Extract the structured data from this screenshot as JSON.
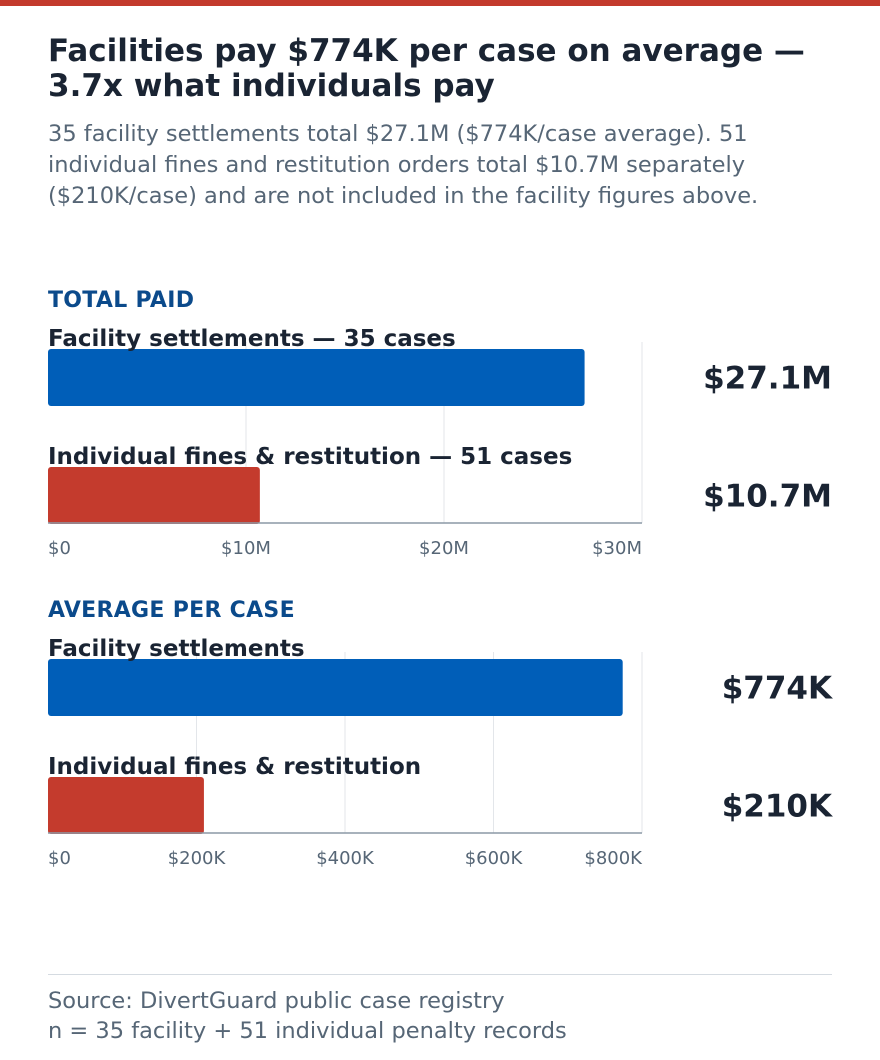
{
  "colors": {
    "accent_top": "#c33a2c",
    "facility": "#005eb8",
    "individual": "#c43b2d",
    "section_label": "#0b4a8b",
    "text_dark": "#1a2433",
    "text_muted": "#566676",
    "grid": "#e3e6ea",
    "axis": "#8c99a6"
  },
  "header": {
    "title": "Facilities pay $774K per case on average — 3.7x what individuals pay",
    "subtitle": "35 facility settlements total $27.1M ($774K/case average). 51 individual fines and restitution orders total $10.7M separately ($210K/case) and are not included in the facility figures above."
  },
  "chart_data": [
    {
      "type": "bar",
      "orientation": "horizontal",
      "title": "TOTAL PAID",
      "categories": [
        "Facility settlements — 35 cases",
        "Individual fines & restitution — 51 cases"
      ],
      "values": [
        27.1,
        10.7
      ],
      "value_labels": [
        "$27.1M",
        "$10.7M"
      ],
      "unit": "millions USD",
      "xlim": [
        0,
        30
      ],
      "ticks": [
        0,
        10,
        20,
        30
      ],
      "tick_labels": [
        "$0",
        "$10M",
        "$20M",
        "$30M"
      ],
      "grid": true
    },
    {
      "type": "bar",
      "orientation": "horizontal",
      "title": "AVERAGE PER CASE",
      "categories": [
        "Facility settlements",
        "Individual fines & restitution"
      ],
      "values": [
        774,
        210
      ],
      "value_labels": [
        "$774K",
        "$210K"
      ],
      "unit": "thousands USD",
      "xlim": [
        0,
        800
      ],
      "ticks": [
        0,
        200,
        400,
        600,
        800
      ],
      "tick_labels": [
        "$0",
        "$200K",
        "$400K",
        "$600K",
        "$800K"
      ],
      "grid": true
    }
  ],
  "footer": {
    "source_line": "Source: DivertGuard public case registry",
    "n_line": "n = 35 facility + 51 individual penalty records"
  }
}
